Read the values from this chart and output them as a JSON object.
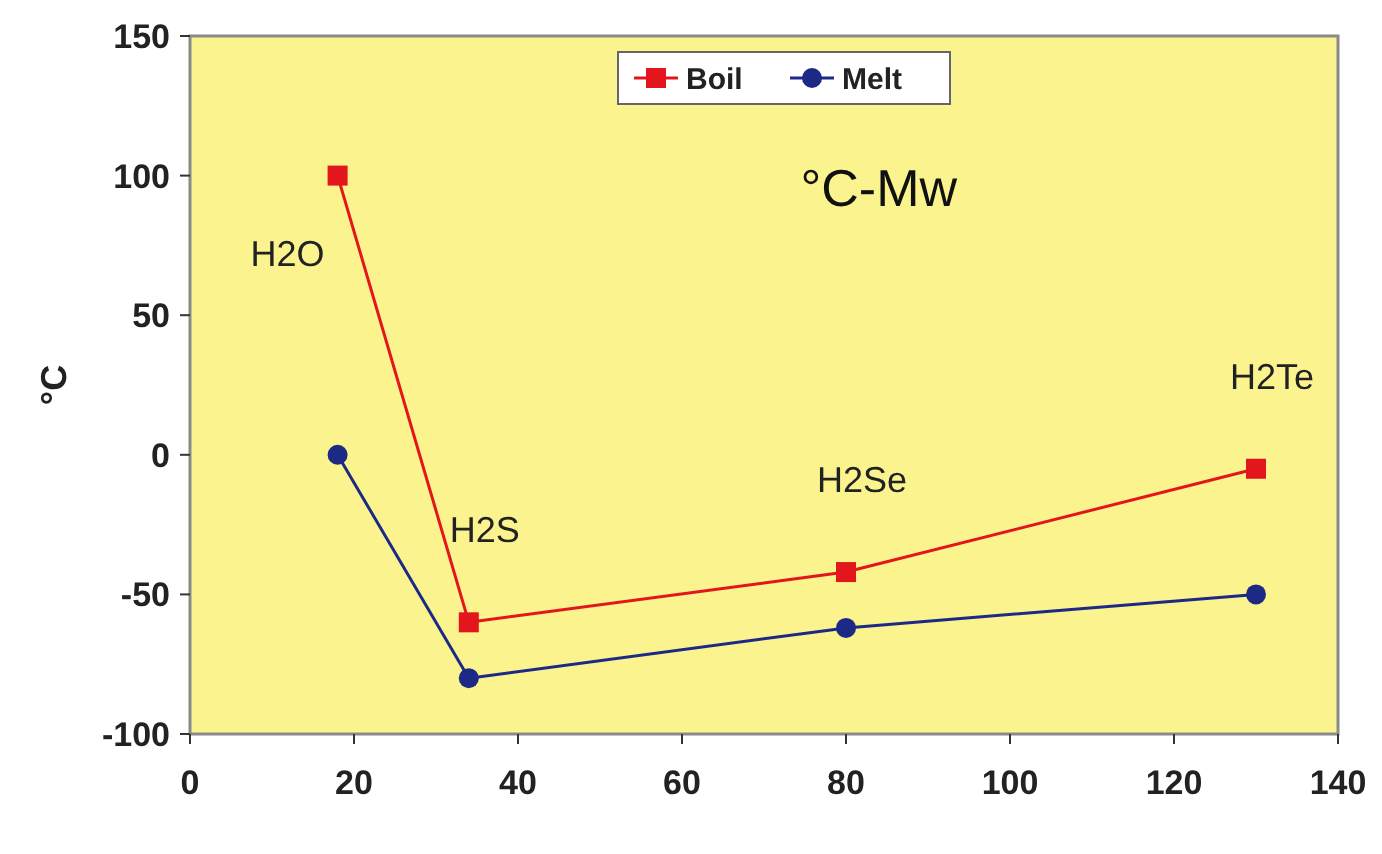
{
  "chart_data": {
    "type": "line",
    "title": "°C-Mw",
    "ylabel": "°C",
    "xlim": [
      0,
      140
    ],
    "xticks": [
      0,
      20,
      40,
      60,
      80,
      100,
      120,
      140
    ],
    "ylim": [
      -100,
      150
    ],
    "yticks": [
      -100,
      -50,
      0,
      50,
      100,
      150
    ],
    "series": [
      {
        "name": "Boil",
        "color": "#e3161b",
        "marker": "square",
        "x": [
          18,
          34,
          80,
          130
        ],
        "values": [
          100,
          -60,
          -42,
          -5
        ]
      },
      {
        "name": "Melt",
        "color": "#1c2a86",
        "marker": "circle",
        "x": [
          18,
          34,
          80,
          130
        ],
        "values": [
          0,
          -80,
          -62,
          -50
        ]
      }
    ],
    "annotations": [
      {
        "text": "H2O",
        "x": 18,
        "y": 100
      },
      {
        "text": "H2S",
        "x": 34,
        "y": -60
      },
      {
        "text": "H2Se",
        "x": 80,
        "y": -42
      },
      {
        "text": "H2Te",
        "x": 130,
        "y": -5
      }
    ],
    "legend": "top",
    "grid": false,
    "line_style": "solid"
  }
}
